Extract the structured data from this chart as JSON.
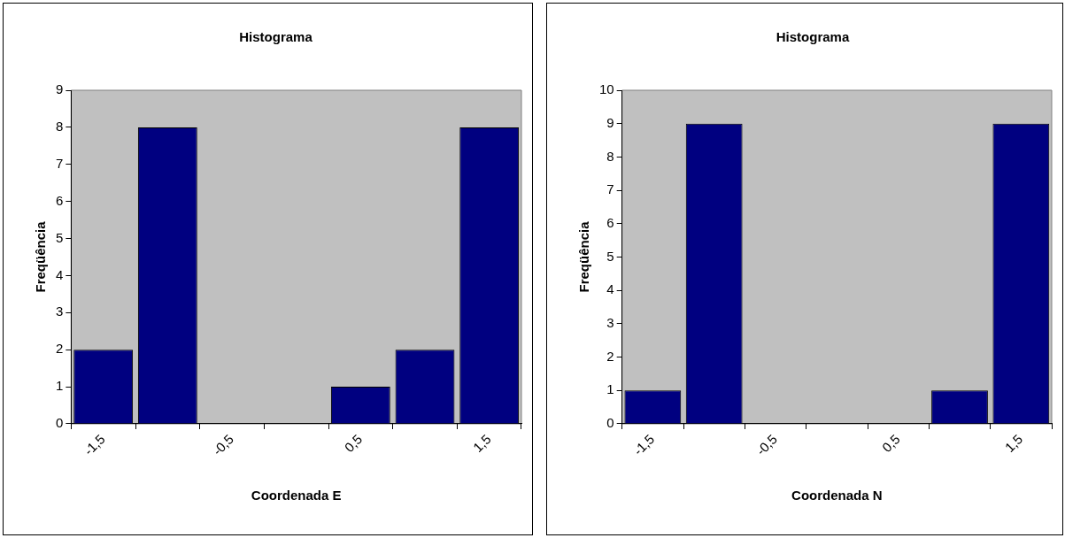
{
  "chart_data": [
    {
      "type": "bar",
      "title": "Histograma",
      "xlabel": "Coordenada E",
      "ylabel": "Freqüência",
      "categories": [
        "-1,5",
        null,
        "-0,5",
        null,
        "0,5",
        null,
        "1,5"
      ],
      "values": [
        2,
        8,
        0,
        0,
        1,
        2,
        8
      ],
      "color": "#000080",
      "ylim": [
        0,
        9
      ],
      "yticks": [
        0,
        1,
        2,
        3,
        4,
        5,
        6,
        7,
        8,
        9
      ]
    },
    {
      "type": "bar",
      "title": "Histograma",
      "xlabel": "Coordenada N",
      "ylabel": "Freqüência",
      "categories": [
        "-1,5",
        null,
        "-0,5",
        null,
        "0,5",
        null,
        "1,5"
      ],
      "values": [
        1,
        9,
        0,
        0,
        0,
        1,
        9
      ],
      "color": "#000080",
      "ylim": [
        0,
        10
      ],
      "yticks": [
        0,
        1,
        2,
        3,
        4,
        5,
        6,
        7,
        8,
        9,
        10
      ]
    }
  ]
}
